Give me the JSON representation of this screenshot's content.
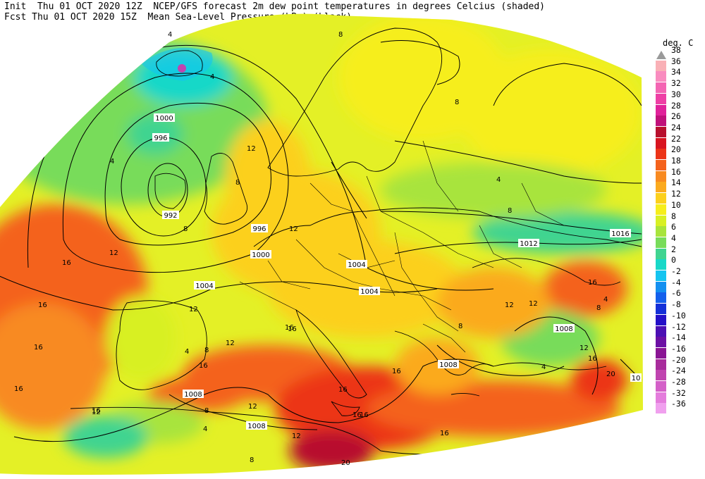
{
  "header": {
    "line1": "Init  Thu 01 OCT 2020 12Z  NCEP/GFS forecast 2m dew point temperatures in degrees Celcius (shaded)",
    "line2": "Fcst Thu 01 OCT 2020 15Z  Mean Sea-Level Pressure (hPa) (black)."
  },
  "legend": {
    "title": "deg. C",
    "levels": [
      {
        "label": "38",
        "color": "#9a9a9a"
      },
      {
        "label": "36",
        "color": "#f9b0b6"
      },
      {
        "label": "34",
        "color": "#f98cbf"
      },
      {
        "label": "32",
        "color": "#f465b3"
      },
      {
        "label": "30",
        "color": "#ee3fa5"
      },
      {
        "label": "28",
        "color": "#e0229a"
      },
      {
        "label": "26",
        "color": "#c0117a"
      },
      {
        "label": "24",
        "color": "#b8102e"
      },
      {
        "label": "22",
        "color": "#d81520"
      },
      {
        "label": "20",
        "color": "#ec3418"
      },
      {
        "label": "18",
        "color": "#f4621c"
      },
      {
        "label": "16",
        "color": "#f88a20"
      },
      {
        "label": "14",
        "color": "#fbaa1e"
      },
      {
        "label": "12",
        "color": "#fcd01c"
      },
      {
        "label": "10",
        "color": "#f6ee1c"
      },
      {
        "label": "8",
        "color": "#d8f024"
      },
      {
        "label": "6",
        "color": "#a8e43c"
      },
      {
        "label": "4",
        "color": "#78dc5a"
      },
      {
        "label": "2",
        "color": "#40d490"
      },
      {
        "label": "0",
        "color": "#18d8c8"
      },
      {
        "label": "-2",
        "color": "#14c4f0"
      },
      {
        "label": "-4",
        "color": "#1490f0"
      },
      {
        "label": "-6",
        "color": "#1460ec"
      },
      {
        "label": "-8",
        "color": "#1430d8"
      },
      {
        "label": "-10",
        "color": "#2410c8"
      },
      {
        "label": "-12",
        "color": "#4c10b4"
      },
      {
        "label": "-14",
        "color": "#6c10a4"
      },
      {
        "label": "-16",
        "color": "#8a1494"
      },
      {
        "label": "-20",
        "color": "#a82c9c"
      },
      {
        "label": "-24",
        "color": "#c044b0"
      },
      {
        "label": "-28",
        "color": "#d460c8"
      },
      {
        "label": "-32",
        "color": "#e47cdc"
      },
      {
        "label": "-36",
        "color": "#f0a0ee"
      }
    ]
  },
  "isobars": {
    "labels": [
      "1000",
      "996",
      "992",
      "996",
      "1000",
      "1004",
      "1004",
      "1004",
      "1008",
      "1008",
      "1008",
      "1012",
      "1016",
      "1008",
      "10"
    ]
  },
  "dewpoint_labels": [
    "4",
    "4",
    "8",
    "12",
    "8",
    "4",
    "8",
    "12",
    "16",
    "16",
    "12",
    "12",
    "16",
    "16",
    "12",
    "4",
    "8",
    "16",
    "12",
    "12",
    "8",
    "16",
    "4",
    "16",
    "16",
    "12",
    "8",
    "16",
    "16",
    "20",
    "12",
    "16",
    "4",
    "16",
    "20",
    "8",
    "4",
    "16",
    "8",
    "16",
    "16",
    "12",
    "8",
    "8",
    "4",
    "12"
  ]
}
